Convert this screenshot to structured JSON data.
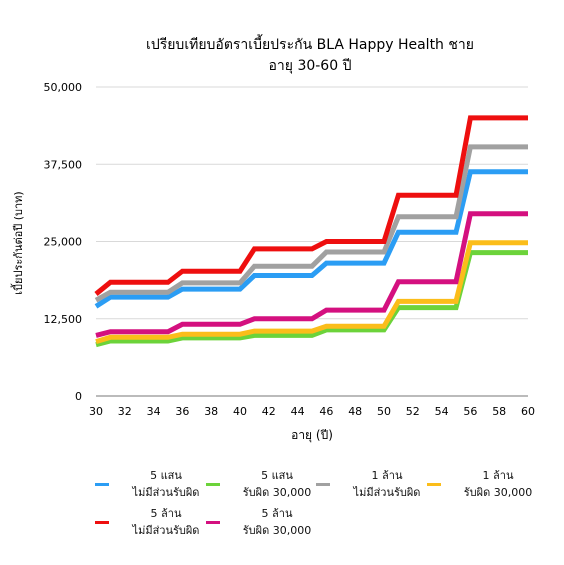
{
  "chart_data": {
    "type": "line",
    "title": "เปรียบเทียบอัตราเบี้ยประกัน BLA Happy Health ชาย",
    "subtitle": "อายุ 30-60 ปี",
    "xlabel": "อายุ (ปี)",
    "ylabel": "เบี้ยประกันต่อปี (บาท)",
    "xlim": [
      30,
      60
    ],
    "ylim": [
      0,
      50000
    ],
    "x_ticks": [
      "30",
      "32",
      "34",
      "36",
      "38",
      "40",
      "42",
      "44",
      "46",
      "48",
      "50",
      "52",
      "54",
      "56",
      "58",
      "60"
    ],
    "y_ticks": [
      "0",
      "12,500",
      "25,000",
      "37,500",
      "50,000"
    ],
    "x_tick_values": [
      30,
      32,
      34,
      36,
      38,
      40,
      42,
      44,
      46,
      48,
      50,
      52,
      54,
      56,
      58,
      60
    ],
    "y_tick_values": [
      0,
      12500,
      25000,
      37500,
      50000
    ],
    "grid": "horizontal",
    "legend_position": "bottom",
    "x": [
      30,
      31,
      35,
      36,
      40,
      41,
      45,
      46,
      50,
      51,
      55,
      56,
      60
    ],
    "series": [
      {
        "name": "5 แสน\nไม่มีส่วนรับผิด",
        "color": "#2b9df4",
        "values": [
          14500,
          16000,
          16000,
          17300,
          17300,
          19500,
          19500,
          21500,
          21500,
          26500,
          26500,
          36300,
          36300
        ]
      },
      {
        "name": "5 แสน\nรับผิด 30,000",
        "color": "#6cd33a",
        "values": [
          8300,
          8900,
          8900,
          9400,
          9400,
          9800,
          9800,
          10700,
          10700,
          14300,
          14300,
          23200,
          23200
        ]
      },
      {
        "name": "1 ล้าน\nไม่มีส่วนรับผิด",
        "color": "#a1a1a1",
        "values": [
          15500,
          16800,
          16800,
          18300,
          18300,
          21000,
          21000,
          23300,
          23300,
          29000,
          29000,
          40300,
          40300
        ]
      },
      {
        "name": "1 ล้าน\nรับผิด 30,000",
        "color": "#fbbd1a",
        "values": [
          8800,
          9500,
          9500,
          10000,
          10000,
          10500,
          10500,
          11300,
          11300,
          15300,
          15300,
          24800,
          24800
        ]
      },
      {
        "name": "5 ล้าน\nไม่มีส่วนรับผิด",
        "color": "#ee0f0f",
        "values": [
          16500,
          18400,
          18400,
          20200,
          20200,
          23800,
          23800,
          25000,
          25000,
          32500,
          32500,
          45000,
          45000
        ]
      },
      {
        "name": "5 ล้าน\nรับผิด 30,000",
        "color": "#d4107f",
        "values": [
          9800,
          10400,
          10400,
          11600,
          11600,
          12500,
          12500,
          13900,
          13900,
          18500,
          18500,
          29500,
          29500
        ]
      }
    ]
  }
}
